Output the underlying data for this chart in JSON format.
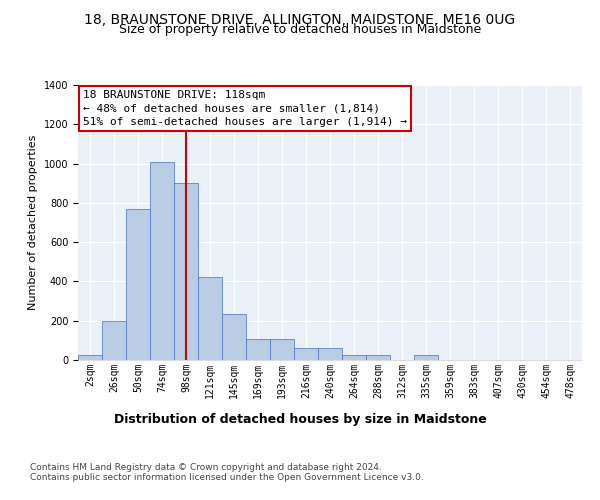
{
  "title": "18, BRAUNSTONE DRIVE, ALLINGTON, MAIDSTONE, ME16 0UG",
  "subtitle": "Size of property relative to detached houses in Maidstone",
  "xlabel": "Distribution of detached houses by size in Maidstone",
  "ylabel": "Number of detached properties",
  "categories": [
    "2sqm",
    "26sqm",
    "50sqm",
    "74sqm",
    "98sqm",
    "121sqm",
    "145sqm",
    "169sqm",
    "193sqm",
    "216sqm",
    "240sqm",
    "264sqm",
    "288sqm",
    "312sqm",
    "335sqm",
    "359sqm",
    "383sqm",
    "407sqm",
    "430sqm",
    "454sqm",
    "478sqm"
  ],
  "values": [
    25,
    200,
    770,
    1010,
    900,
    425,
    235,
    107,
    107,
    60,
    60,
    25,
    25,
    0,
    25,
    0,
    0,
    0,
    0,
    0,
    0
  ],
  "bar_color": "#b8cce4",
  "bar_edge_color": "#4472c4",
  "vline_x": 4.5,
  "vline_color": "#cc0000",
  "annotation_text": "18 BRAUNSTONE DRIVE: 118sqm\n← 48% of detached houses are smaller (1,814)\n51% of semi-detached houses are larger (1,914) →",
  "annotation_box_facecolor": "#ffffff",
  "annotation_box_edgecolor": "#cc0000",
  "ylim": [
    0,
    1400
  ],
  "yticks": [
    0,
    200,
    400,
    600,
    800,
    1000,
    1200,
    1400
  ],
  "plot_background_color": "#eaf0f8",
  "footer_line1": "Contains HM Land Registry data © Crown copyright and database right 2024.",
  "footer_line2": "Contains public sector information licensed under the Open Government Licence v3.0.",
  "title_fontsize": 10,
  "subtitle_fontsize": 9,
  "xlabel_fontsize": 9,
  "ylabel_fontsize": 8,
  "tick_fontsize": 7,
  "annotation_fontsize": 8,
  "footer_fontsize": 6.5
}
